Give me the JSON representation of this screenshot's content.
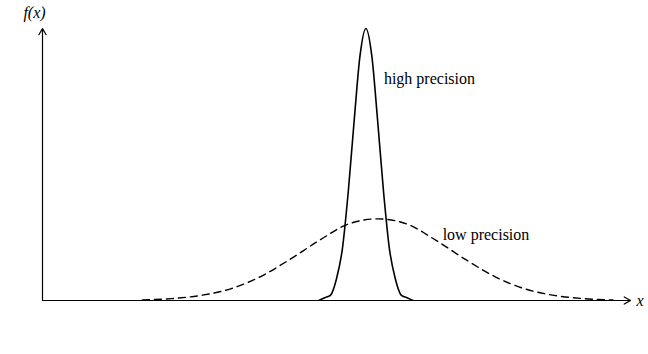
{
  "chart_data": {
    "type": "line",
    "xlabel": "x",
    "ylabel": "f(x)",
    "xlim": [
      0,
      100
    ],
    "ylim": [
      0,
      100
    ],
    "xticks": [],
    "yticks": [],
    "tick_labels": false,
    "series": [
      {
        "name": "high precision",
        "color": "#000000",
        "line_style": "solid",
        "x": [
          47,
          48,
          49,
          50,
          51,
          52,
          53,
          54,
          55,
          56,
          57,
          58,
          59,
          60,
          61,
          62,
          63
        ],
        "values": [
          0,
          1,
          2,
          8,
          19,
          40,
          66,
          90,
          100,
          90,
          66,
          40,
          19,
          8,
          2,
          1,
          0
        ]
      },
      {
        "name": "low precision",
        "color": "#000000",
        "line_style": "dashed",
        "x": [
          17,
          22,
          27,
          32,
          37,
          42,
          47,
          52,
          57,
          62,
          67,
          72,
          77,
          82,
          87,
          92,
          97
        ],
        "values": [
          0.2,
          0.7,
          1.9,
          4.3,
          8.7,
          15,
          22,
          28.1,
          30,
          28.1,
          22,
          15,
          8.7,
          4.3,
          1.9,
          0.7,
          0.2
        ]
      }
    ]
  }
}
